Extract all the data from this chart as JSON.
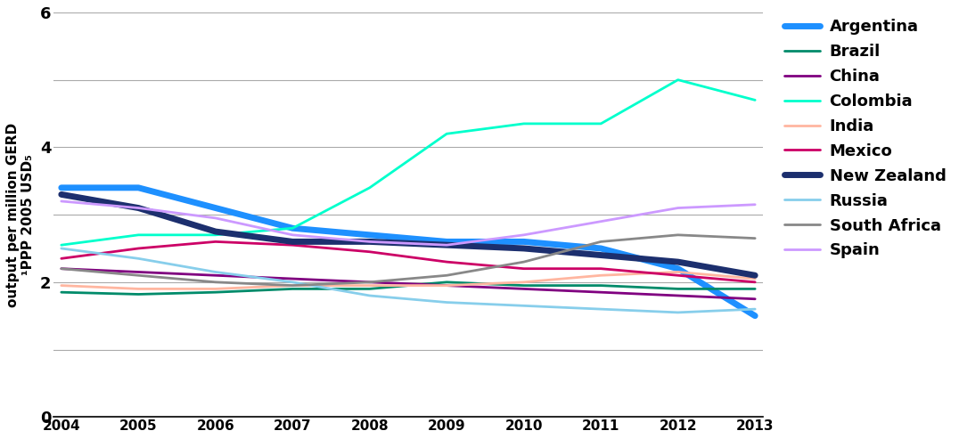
{
  "years": [
    2004,
    2005,
    2006,
    2007,
    2008,
    2009,
    2010,
    2011,
    2012,
    2013
  ],
  "series": {
    "Argentina": {
      "color": "#1E90FF",
      "linewidth": 5,
      "values": [
        3.4,
        3.4,
        3.1,
        2.8,
        2.7,
        2.6,
        2.6,
        2.5,
        2.2,
        1.5
      ]
    },
    "Brazil": {
      "color": "#008B6A",
      "linewidth": 2,
      "values": [
        1.85,
        1.82,
        1.85,
        1.9,
        1.9,
        2.0,
        1.95,
        1.95,
        1.9,
        1.9
      ]
    },
    "China": {
      "color": "#800080",
      "linewidth": 2,
      "values": [
        2.2,
        2.15,
        2.1,
        2.05,
        2.0,
        1.95,
        1.9,
        1.85,
        1.8,
        1.75
      ]
    },
    "Colombia": {
      "color": "#00FFCC",
      "linewidth": 2,
      "values": [
        2.55,
        2.7,
        2.7,
        2.8,
        3.4,
        4.2,
        4.35,
        4.35,
        5.0,
        4.7
      ]
    },
    "India": {
      "color": "#FFB6A0",
      "linewidth": 2,
      "values": [
        1.95,
        1.9,
        1.9,
        1.95,
        1.95,
        1.95,
        2.0,
        2.1,
        2.15,
        2.05
      ]
    },
    "Mexico": {
      "color": "#CC0066",
      "linewidth": 2,
      "values": [
        2.35,
        2.5,
        2.6,
        2.55,
        2.45,
        2.3,
        2.2,
        2.2,
        2.1,
        2.0
      ]
    },
    "New Zealand": {
      "color": "#1C2F6E",
      "linewidth": 5,
      "values": [
        3.3,
        3.1,
        2.75,
        2.6,
        2.6,
        2.55,
        2.5,
        2.4,
        2.3,
        2.1
      ]
    },
    "Russia": {
      "color": "#87CEEB",
      "linewidth": 2,
      "values": [
        2.5,
        2.35,
        2.15,
        2.0,
        1.8,
        1.7,
        1.65,
        1.6,
        1.55,
        1.6
      ]
    },
    "South Africa": {
      "color": "#888888",
      "linewidth": 2,
      "values": [
        2.2,
        2.1,
        2.0,
        1.95,
        2.0,
        2.1,
        2.3,
        2.6,
        2.7,
        2.65
      ]
    },
    "Spain": {
      "color": "#CC99FF",
      "linewidth": 2,
      "values": [
        3.2,
        3.1,
        2.95,
        2.7,
        2.6,
        2.55,
        2.7,
        2.9,
        3.1,
        3.15
      ]
    }
  },
  "ylabel_line1": "output per million GERD",
  "ylabel_line2": "¹PPP 2005 USD₅",
  "ylim": [
    0,
    6
  ],
  "ytick_labels": [
    "0",
    "",
    "2",
    "",
    "4",
    "",
    "6"
  ],
  "ytick_values": [
    0,
    1,
    2,
    3,
    4,
    5,
    6
  ],
  "grid_at": [
    1,
    2,
    3,
    4,
    5,
    6
  ],
  "xticks": [
    2004,
    2005,
    2006,
    2007,
    2008,
    2009,
    2010,
    2011,
    2012,
    2013
  ],
  "background_color": "#ffffff",
  "grid_color": "#aaaaaa"
}
